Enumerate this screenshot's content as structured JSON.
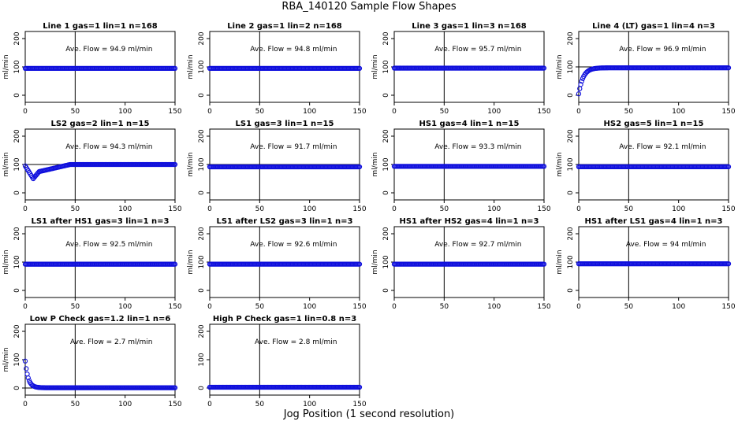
{
  "figure": {
    "title": "RBA_140120  Sample Flow Shapes",
    "xlabel": "Jog Position (1 second resolution)"
  },
  "chart_data": {
    "type": "scatter",
    "panels": [
      {
        "title": "Line 1 gas=1 lin=1 n=168",
        "annotation": "Ave. Flow = 94.9  ml/min",
        "ylabel": "ml/min",
        "xticks": [
          0,
          50,
          100,
          150
        ],
        "yticks": [
          0,
          100,
          200
        ],
        "xlim": [
          0,
          150
        ],
        "ylim": [
          -25,
          225
        ],
        "hline": 100,
        "vline": 50,
        "shape": "flat",
        "level": 94.9
      },
      {
        "title": "Line 2 gas=1 lin=2 n=168",
        "annotation": "Ave. Flow = 94.8  ml/min",
        "ylabel": "ml/min",
        "xticks": [
          0,
          50,
          100,
          150
        ],
        "yticks": [
          0,
          100,
          200
        ],
        "xlim": [
          0,
          150
        ],
        "ylim": [
          -25,
          225
        ],
        "hline": 100,
        "vline": 50,
        "shape": "flat",
        "level": 94.8
      },
      {
        "title": "Line 3 gas=1 lin=3 n=168",
        "annotation": "Ave. Flow = 95.7  ml/min",
        "ylabel": "ml/min",
        "xticks": [
          0,
          50,
          100,
          150
        ],
        "yticks": [
          0,
          100,
          200
        ],
        "xlim": [
          0,
          150
        ],
        "ylim": [
          -25,
          225
        ],
        "hline": 100,
        "vline": 50,
        "shape": "flat",
        "level": 95.7
      },
      {
        "title": "Line 4 (LT) gas=1 lin=4 n=3",
        "annotation": "Ave. Flow = 96.9  ml/min",
        "ylabel": "ml/min",
        "xticks": [
          0,
          50,
          100,
          150
        ],
        "yticks": [
          0,
          100,
          200
        ],
        "xlim": [
          0,
          150
        ],
        "ylim": [
          -25,
          225
        ],
        "hline": 100,
        "vline": 50,
        "shape": "ramp",
        "level": 96.9,
        "start": 5
      },
      {
        "title": "LS2 gas=2 lin=1 n=15",
        "annotation": "Ave. Flow = 94.3  ml/min",
        "ylabel": "ml/min",
        "xticks": [
          0,
          50,
          100,
          150
        ],
        "yticks": [
          0,
          100,
          200
        ],
        "xlim": [
          0,
          150
        ],
        "ylim": [
          -25,
          225
        ],
        "hline": 100,
        "vline": 50,
        "shape": "dip",
        "level": 100,
        "start": 95,
        "min": 50
      },
      {
        "title": "LS1 gas=3 lin=1 n=15",
        "annotation": "Ave. Flow = 91.7  ml/min",
        "ylabel": "ml/min",
        "xticks": [
          0,
          50,
          100,
          150
        ],
        "yticks": [
          0,
          100,
          200
        ],
        "xlim": [
          0,
          150
        ],
        "ylim": [
          -25,
          225
        ],
        "hline": 100,
        "vline": 50,
        "shape": "flat",
        "level": 91.7
      },
      {
        "title": "HS1 gas=4 lin=1 n=15",
        "annotation": "Ave. Flow = 93.3  ml/min",
        "ylabel": "ml/min",
        "xticks": [
          0,
          50,
          100,
          150
        ],
        "yticks": [
          0,
          100,
          200
        ],
        "xlim": [
          0,
          150
        ],
        "ylim": [
          -25,
          225
        ],
        "hline": 100,
        "vline": 50,
        "shape": "flat",
        "level": 93.3
      },
      {
        "title": "HS2 gas=5 lin=1 n=15",
        "annotation": "Ave. Flow = 92.1  ml/min",
        "ylabel": "ml/min",
        "xticks": [
          0,
          50,
          100,
          150
        ],
        "yticks": [
          0,
          100,
          200
        ],
        "xlim": [
          0,
          150
        ],
        "ylim": [
          -25,
          225
        ],
        "hline": 100,
        "vline": 50,
        "shape": "flat",
        "level": 92.1
      },
      {
        "title": "LS1 after HS1 gas=3 lin=1 n=3",
        "annotation": "Ave. Flow = 92.5  ml/min",
        "ylabel": "ml/min",
        "xticks": [
          0,
          50,
          100,
          150
        ],
        "yticks": [
          0,
          100,
          200
        ],
        "xlim": [
          0,
          150
        ],
        "ylim": [
          -25,
          225
        ],
        "hline": 100,
        "vline": 50,
        "shape": "flat",
        "level": 92.5
      },
      {
        "title": "LS1 after LS2 gas=3 lin=1 n=3",
        "annotation": "Ave. Flow = 92.6  ml/min",
        "ylabel": "ml/min",
        "xticks": [
          0,
          50,
          100,
          150
        ],
        "yticks": [
          0,
          100,
          200
        ],
        "xlim": [
          0,
          150
        ],
        "ylim": [
          -25,
          225
        ],
        "hline": 100,
        "vline": 50,
        "shape": "flat",
        "level": 92.6
      },
      {
        "title": "HS1 after HS2 gas=4 lin=1 n=3",
        "annotation": "Ave. Flow = 92.7  ml/min",
        "ylabel": "ml/min",
        "xticks": [
          0,
          50,
          100,
          150
        ],
        "yticks": [
          0,
          100,
          200
        ],
        "xlim": [
          0,
          150
        ],
        "ylim": [
          -25,
          225
        ],
        "hline": 100,
        "vline": 50,
        "shape": "flat",
        "level": 92.7
      },
      {
        "title": "HS1 after LS1 gas=4 lin=1 n=3",
        "annotation": "Ave. Flow = 94  ml/min",
        "ylabel": "ml/min",
        "xticks": [
          0,
          50,
          100,
          150
        ],
        "yticks": [
          0,
          100,
          200
        ],
        "xlim": [
          0,
          150
        ],
        "ylim": [
          -25,
          225
        ],
        "hline": 100,
        "vline": 50,
        "shape": "flat",
        "level": 94
      },
      {
        "title": "Low P Check gas=1.2 lin=1 n=6",
        "annotation": "Ave. Flow = 2.7  ml/min",
        "ylabel": "ml/min",
        "xticks": [
          0,
          50,
          100,
          150
        ],
        "yticks": [
          0,
          100,
          200
        ],
        "xlim": [
          0,
          150
        ],
        "ylim": [
          -25,
          225
        ],
        "hline": 0,
        "vline": 50,
        "shape": "decay",
        "level": 1,
        "start": 95
      },
      {
        "title": "High P Check gas=1 lin=0.8 n=3",
        "annotation": "Ave. Flow = 2.8  ml/min",
        "ylabel": "",
        "xticks": [
          0,
          50,
          100,
          150
        ],
        "yticks": [
          0,
          100,
          200
        ],
        "xlim": [
          0,
          150
        ],
        "ylim": [
          -25,
          225
        ],
        "hline": 0,
        "vline": 50,
        "shape": "flat",
        "level": 2.8
      }
    ],
    "point_color": "#1010dd",
    "grid": false,
    "legend": "none"
  }
}
